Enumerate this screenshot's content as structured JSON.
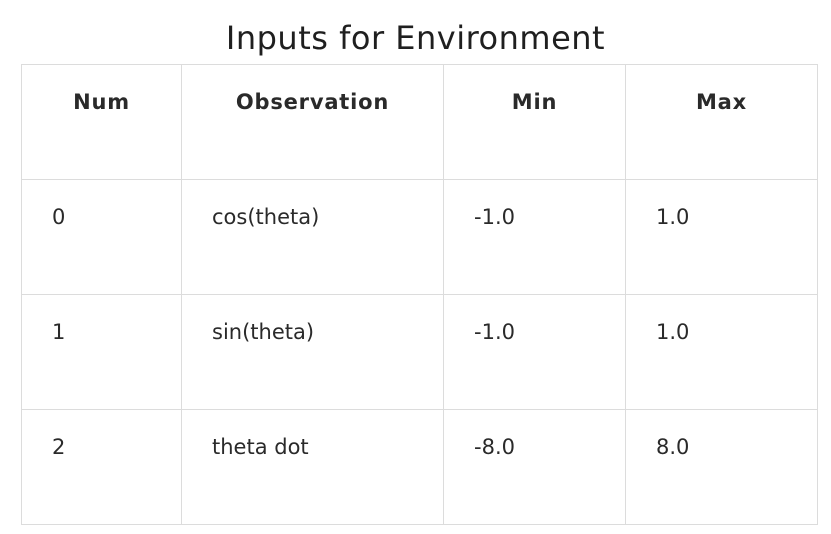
{
  "title": "Inputs for Environment",
  "table": {
    "headers": [
      "Num",
      "Observation",
      "Min",
      "Max"
    ],
    "rows": [
      [
        "0",
        "cos(theta)",
        "-1.0",
        "1.0"
      ],
      [
        "1",
        "sin(theta)",
        "-1.0",
        "1.0"
      ],
      [
        "2",
        "theta dot",
        "-8.0",
        "8.0"
      ]
    ]
  }
}
